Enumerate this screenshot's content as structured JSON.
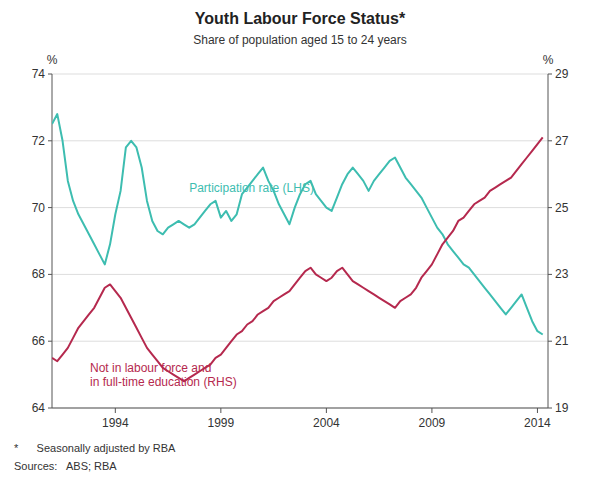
{
  "chart_data": {
    "type": "line",
    "title": "Youth Labour Force Status*",
    "subtitle": "Share of population aged 15 to 24 years",
    "footnote": "*      Seasonally adjusted by RBA",
    "sources": "Sources:   ABS; RBA",
    "y_label": "%",
    "y2_label": "%",
    "xlim": [
      1991.0,
      2014.5
    ],
    "xticks": [
      1994,
      1999,
      2004,
      2009,
      2014
    ],
    "ylim": [
      64,
      74
    ],
    "yticks": [
      64,
      66,
      68,
      70,
      72,
      74
    ],
    "y2lim": [
      19,
      29
    ],
    "y2ticks": [
      19,
      21,
      23,
      25,
      27,
      29
    ],
    "grid": true,
    "x": [
      1991.0,
      1991.25,
      1991.5,
      1991.75,
      1992.0,
      1992.25,
      1992.5,
      1992.75,
      1993.0,
      1993.25,
      1993.5,
      1993.75,
      1994.0,
      1994.25,
      1994.5,
      1994.75,
      1995.0,
      1995.25,
      1995.5,
      1995.75,
      1996.0,
      1996.25,
      1996.5,
      1996.75,
      1997.0,
      1997.25,
      1997.5,
      1997.75,
      1998.0,
      1998.25,
      1998.5,
      1998.75,
      1999.0,
      1999.25,
      1999.5,
      1999.75,
      2000.0,
      2000.25,
      2000.5,
      2000.75,
      2001.0,
      2001.25,
      2001.5,
      2001.75,
      2002.0,
      2002.25,
      2002.5,
      2002.75,
      2003.0,
      2003.25,
      2003.5,
      2003.75,
      2004.0,
      2004.25,
      2004.5,
      2004.75,
      2005.0,
      2005.25,
      2005.5,
      2005.75,
      2006.0,
      2006.25,
      2006.5,
      2006.75,
      2007.0,
      2007.25,
      2007.5,
      2007.75,
      2008.0,
      2008.25,
      2008.5,
      2008.75,
      2009.0,
      2009.25,
      2009.5,
      2009.75,
      2010.0,
      2010.25,
      2010.5,
      2010.75,
      2011.0,
      2011.25,
      2011.5,
      2011.75,
      2012.0,
      2012.25,
      2012.5,
      2012.75,
      2013.0,
      2013.25,
      2013.5,
      2013.75,
      2014.0,
      2014.25
    ],
    "series": [
      {
        "color": "#3DBDB0",
        "axis": "y",
        "values": [
          72.5,
          72.8,
          72.0,
          70.8,
          70.2,
          69.8,
          69.5,
          69.2,
          68.9,
          68.6,
          68.3,
          68.9,
          69.8,
          70.5,
          71.8,
          72.0,
          71.8,
          71.2,
          70.2,
          69.6,
          69.3,
          69.2,
          69.4,
          69.5,
          69.6,
          69.5,
          69.4,
          69.5,
          69.7,
          69.9,
          70.1,
          70.2,
          69.7,
          69.9,
          69.6,
          69.8,
          70.4,
          70.6,
          70.8,
          71.0,
          71.2,
          70.8,
          70.5,
          70.1,
          69.8,
          69.5,
          70.0,
          70.4,
          70.7,
          70.8,
          70.4,
          70.2,
          70.0,
          69.9,
          70.3,
          70.7,
          71.0,
          71.2,
          71.0,
          70.8,
          70.5,
          70.8,
          71.0,
          71.2,
          71.4,
          71.5,
          71.2,
          70.9,
          70.7,
          70.5,
          70.3,
          70.0,
          69.7,
          69.4,
          69.2,
          68.9,
          68.7,
          68.5,
          68.3,
          68.2,
          68.0,
          67.8,
          67.6,
          67.4,
          67.2,
          67.0,
          66.8,
          67.0,
          67.2,
          67.4,
          67.0,
          66.6,
          66.3,
          66.2
        ]
      },
      {
        "color": "#B5294E",
        "axis": "y2",
        "values": [
          20.5,
          20.4,
          20.6,
          20.8,
          21.1,
          21.4,
          21.6,
          21.8,
          22.0,
          22.3,
          22.6,
          22.7,
          22.5,
          22.3,
          22.0,
          21.7,
          21.4,
          21.1,
          20.8,
          20.6,
          20.4,
          20.2,
          20.1,
          20.0,
          19.9,
          19.8,
          19.9,
          20.0,
          20.1,
          20.2,
          20.3,
          20.5,
          20.6,
          20.8,
          21.0,
          21.2,
          21.3,
          21.5,
          21.6,
          21.8,
          21.9,
          22.0,
          22.2,
          22.3,
          22.4,
          22.5,
          22.7,
          22.9,
          23.1,
          23.2,
          23.0,
          22.9,
          22.8,
          22.9,
          23.1,
          23.2,
          23.0,
          22.8,
          22.7,
          22.6,
          22.5,
          22.4,
          22.3,
          22.2,
          22.1,
          22.0,
          22.2,
          22.3,
          22.4,
          22.6,
          22.9,
          23.1,
          23.3,
          23.6,
          23.9,
          24.1,
          24.3,
          24.6,
          24.7,
          24.9,
          25.1,
          25.2,
          25.3,
          25.5,
          25.6,
          25.7,
          25.8,
          25.9,
          26.1,
          26.3,
          26.5,
          26.7,
          26.9,
          27.1
        ]
      }
    ],
    "annotations": [
      {
        "lines": [
          "Participation rate (LHS)"
        ],
        "x": 1997.5,
        "y": 70.6,
        "color": "#3DBDB0"
      },
      {
        "lines": [
          "Not in labour force and",
          "in full-time education (RHS)"
        ],
        "x": 1992.8,
        "y": 65.4,
        "color": "#B5294E"
      }
    ]
  }
}
